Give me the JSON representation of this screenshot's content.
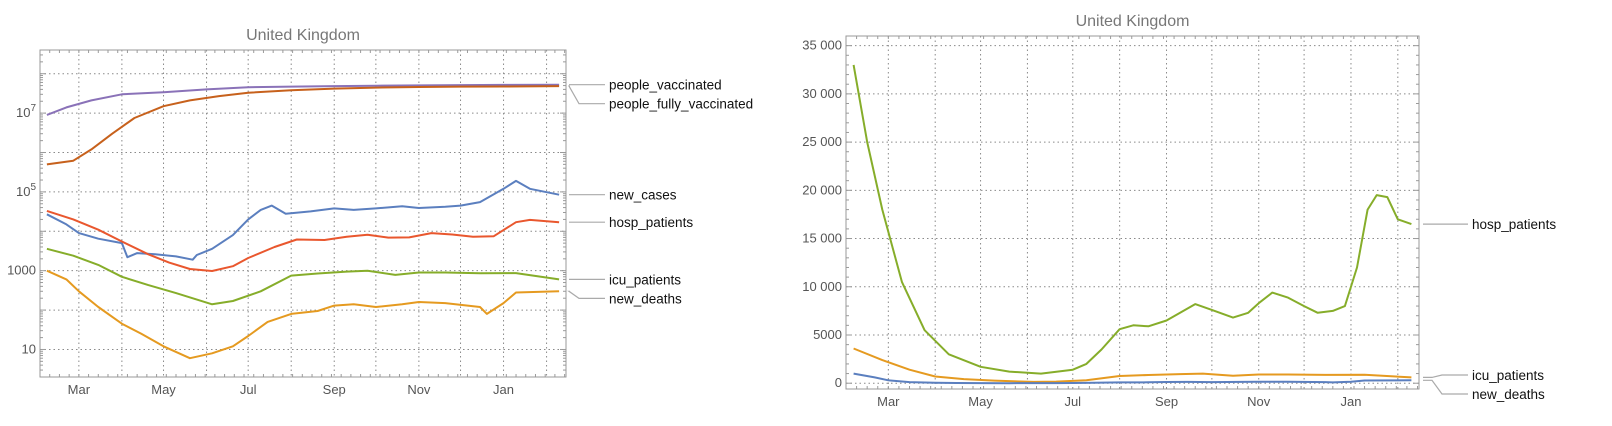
{
  "chart_data": [
    {
      "type": "line",
      "title": "United Kingdom",
      "y_scale": "log",
      "ylim": [
        2,
        400000000
      ],
      "x_ticks": [
        "Mar",
        "May",
        "Jul",
        "Sep",
        "Nov",
        "Jan"
      ],
      "y_ticks": [
        {
          "value": 10,
          "mantissa": "10",
          "exponent": ""
        },
        {
          "value": 1000,
          "mantissa": "1000",
          "exponent": ""
        },
        {
          "value": 100000,
          "mantissa": "10",
          "exponent": "5"
        },
        {
          "value": 10000000,
          "mantissa": "10",
          "exponent": "7"
        }
      ],
      "grid": true,
      "legend": "right, labels at line ends",
      "series": [
        {
          "name": "people_vaccinated",
          "color": "#8a72b8",
          "x": [
            "2021-02-06",
            "2021-02-20",
            "2021-03-10",
            "2021-04-01",
            "2021-05-01",
            "2021-06-01",
            "2021-07-01",
            "2021-08-01",
            "2021-09-01",
            "2021-10-01",
            "2021-11-01",
            "2021-12-01",
            "2022-01-01",
            "2022-02-10"
          ],
          "y": [
            9000000,
            14000000,
            21000000,
            30000000,
            34000000,
            40000000,
            45500000,
            47000000,
            48500000,
            49500000,
            50500000,
            51500000,
            52000000,
            52600000
          ]
        },
        {
          "name": "people_fully_vaccinated",
          "color": "#c7611c",
          "x": [
            "2021-02-06",
            "2021-02-25",
            "2021-03-10",
            "2021-03-25",
            "2021-04-10",
            "2021-05-01",
            "2021-05-20",
            "2021-06-10",
            "2021-07-01",
            "2021-08-01",
            "2021-09-01",
            "2021-10-01",
            "2021-11-01",
            "2021-12-01",
            "2022-01-01",
            "2022-02-10"
          ],
          "y": [
            500000,
            620000,
            1200000,
            3000000,
            7500000,
            15000000,
            21000000,
            27000000,
            33000000,
            38000000,
            42000000,
            44500000,
            46000000,
            47000000,
            47500000,
            48400000
          ]
        },
        {
          "name": "new_cases",
          "color": "#5b7fbf",
          "x": [
            "2021-02-06",
            "2021-02-20",
            "2021-03-01",
            "2021-03-15",
            "2021-04-01",
            "2021-04-05",
            "2021-04-12",
            "2021-04-25",
            "2021-05-10",
            "2021-05-22",
            "2021-05-25",
            "2021-06-05",
            "2021-06-20",
            "2021-07-01",
            "2021-07-10",
            "2021-07-18",
            "2021-07-28",
            "2021-08-15",
            "2021-09-01",
            "2021-09-15",
            "2021-10-01",
            "2021-10-20",
            "2021-11-01",
            "2021-11-20",
            "2021-12-01",
            "2021-12-15",
            "2022-01-01",
            "2022-01-10",
            "2022-01-20",
            "2022-02-10"
          ],
          "y": [
            27000,
            15000,
            9000,
            6500,
            5000,
            2200,
            2800,
            2600,
            2300,
            1900,
            2500,
            3600,
            8000,
            20000,
            35000,
            45000,
            28000,
            32000,
            38000,
            35000,
            38000,
            43000,
            39000,
            42000,
            45000,
            55000,
            120000,
            190000,
            120000,
            85000
          ]
        },
        {
          "name": "hosp_patients",
          "color": "#e9572e",
          "x": [
            "2021-02-06",
            "2021-02-25",
            "2021-03-15",
            "2021-04-01",
            "2021-04-20",
            "2021-05-05",
            "2021-05-20",
            "2021-06-05",
            "2021-06-20",
            "2021-07-01",
            "2021-07-20",
            "2021-08-05",
            "2021-08-25",
            "2021-09-10",
            "2021-09-25",
            "2021-10-10",
            "2021-10-25",
            "2021-11-10",
            "2021-11-25",
            "2021-12-10",
            "2021-12-25",
            "2022-01-10",
            "2022-01-20",
            "2022-02-10"
          ],
          "y": [
            33000,
            20000,
            11000,
            5500,
            2600,
            1600,
            1100,
            980,
            1300,
            2100,
            4000,
            6200,
            6000,
            7300,
            8200,
            6900,
            7000,
            9000,
            8300,
            7300,
            7500,
            17000,
            19500,
            17000
          ]
        },
        {
          "name": "icu_patients",
          "color": "#86ad2a",
          "x": [
            "2021-02-06",
            "2021-02-25",
            "2021-03-15",
            "2021-04-01",
            "2021-04-20",
            "2021-05-10",
            "2021-06-05",
            "2021-06-20",
            "2021-07-10",
            "2021-08-01",
            "2021-08-20",
            "2021-09-10",
            "2021-09-25",
            "2021-10-15",
            "2021-11-01",
            "2021-11-20",
            "2021-12-15",
            "2022-01-10",
            "2022-02-10"
          ],
          "y": [
            3600,
            2400,
            1400,
            700,
            430,
            270,
            140,
            170,
            300,
            750,
            850,
            950,
            1000,
            780,
            900,
            900,
            860,
            870,
            600
          ]
        },
        {
          "name": "new_deaths",
          "color": "#e59a20",
          "x": [
            "2021-02-06",
            "2021-02-20",
            "2021-03-01",
            "2021-03-15",
            "2021-04-01",
            "2021-04-15",
            "2021-05-01",
            "2021-05-20",
            "2021-06-05",
            "2021-06-20",
            "2021-07-01",
            "2021-07-15",
            "2021-08-01",
            "2021-08-20",
            "2021-09-01",
            "2021-09-15",
            "2021-10-01",
            "2021-10-20",
            "2021-11-01",
            "2021-11-20",
            "2021-12-15",
            "2021-12-20",
            "2022-01-01",
            "2022-01-10",
            "2022-02-10"
          ],
          "y": [
            1000,
            600,
            300,
            120,
            45,
            25,
            12,
            6,
            8,
            12,
            22,
            50,
            80,
            95,
            130,
            140,
            120,
            140,
            160,
            150,
            120,
            80,
            150,
            280,
            300
          ]
        }
      ]
    },
    {
      "type": "line",
      "title": "United Kingdom",
      "y_scale": "linear",
      "ylim": [
        -600,
        36000
      ],
      "x_ticks": [
        "Mar",
        "May",
        "Jul",
        "Sep",
        "Nov",
        "Jan"
      ],
      "y_ticks": [
        "0",
        "5000",
        "10 000",
        "15 000",
        "20 000",
        "25 000",
        "30 000",
        "35 000"
      ],
      "grid": true,
      "legend": "right, labels at line ends",
      "series": [
        {
          "name": "hosp_patients",
          "color": "#86ad2a",
          "x": [
            "2021-02-06",
            "2021-02-15",
            "2021-02-25",
            "2021-03-10",
            "2021-03-25",
            "2021-04-10",
            "2021-05-01",
            "2021-05-20",
            "2021-06-10",
            "2021-07-01",
            "2021-07-10",
            "2021-07-20",
            "2021-08-01",
            "2021-08-10",
            "2021-08-20",
            "2021-09-01",
            "2021-09-10",
            "2021-09-20",
            "2021-10-01",
            "2021-10-15",
            "2021-10-25",
            "2021-11-01",
            "2021-11-10",
            "2021-11-20",
            "2021-12-01",
            "2021-12-10",
            "2021-12-20",
            "2021-12-28",
            "2022-01-05",
            "2022-01-12",
            "2022-01-18",
            "2022-01-25",
            "2022-02-01",
            "2022-02-10"
          ],
          "y": [
            33000,
            25000,
            18000,
            10500,
            5500,
            3000,
            1700,
            1200,
            1000,
            1400,
            2000,
            3500,
            5600,
            6000,
            5900,
            6500,
            7300,
            8200,
            7600,
            6800,
            7300,
            8300,
            9400,
            8900,
            8000,
            7300,
            7500,
            8000,
            12000,
            18000,
            19500,
            19300,
            17000,
            16500
          ]
        },
        {
          "name": "icu_patients",
          "color": "#e59a20",
          "x": [
            "2021-02-06",
            "2021-02-25",
            "2021-03-15",
            "2021-04-01",
            "2021-04-20",
            "2021-05-10",
            "2021-06-05",
            "2021-06-20",
            "2021-07-10",
            "2021-08-01",
            "2021-08-20",
            "2021-09-10",
            "2021-09-25",
            "2021-10-15",
            "2021-11-01",
            "2021-11-20",
            "2021-12-15",
            "2022-01-10",
            "2022-02-10"
          ],
          "y": [
            3600,
            2400,
            1400,
            700,
            430,
            270,
            140,
            170,
            300,
            750,
            850,
            950,
            1000,
            780,
            900,
            900,
            860,
            870,
            600
          ]
        },
        {
          "name": "new_deaths",
          "color": "#5b7fbf",
          "x": [
            "2021-02-06",
            "2021-02-20",
            "2021-03-01",
            "2021-03-15",
            "2021-04-01",
            "2021-04-15",
            "2021-05-01",
            "2021-05-20",
            "2021-06-05",
            "2021-06-20",
            "2021-07-01",
            "2021-07-15",
            "2021-08-01",
            "2021-08-20",
            "2021-09-01",
            "2021-09-15",
            "2021-10-01",
            "2021-10-20",
            "2021-11-01",
            "2021-11-20",
            "2021-12-15",
            "2021-12-20",
            "2022-01-01",
            "2022-01-10",
            "2022-02-10"
          ],
          "y": [
            1000,
            600,
            300,
            120,
            45,
            25,
            12,
            6,
            8,
            12,
            22,
            50,
            80,
            95,
            130,
            140,
            120,
            140,
            160,
            150,
            120,
            80,
            150,
            280,
            300
          ]
        }
      ]
    }
  ]
}
